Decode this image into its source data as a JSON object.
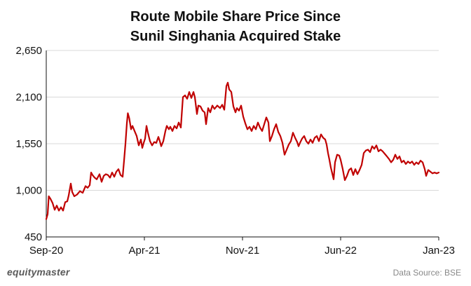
{
  "chart_data": {
    "type": "line",
    "title_lines": [
      "Route Mobile Share Price Since",
      "Sunil Singhania Acquired Stake"
    ],
    "xlabel": "",
    "ylabel": "",
    "ylim": [
      450,
      2650
    ],
    "y_ticks": [
      {
        "value": 450,
        "label": "450"
      },
      {
        "value": 1000,
        "label": "1,000"
      },
      {
        "value": 1550,
        "label": "1,550"
      },
      {
        "value": 2100,
        "label": "2,100"
      },
      {
        "value": 2650,
        "label": "2,650"
      }
    ],
    "x_range": [
      0,
      28
    ],
    "x_ticks": [
      {
        "value": 0,
        "label": "Sep-20"
      },
      {
        "value": 7,
        "label": "Apr-21"
      },
      {
        "value": 14,
        "label": "Nov-21"
      },
      {
        "value": 21,
        "label": "Jun-22"
      },
      {
        "value": 28,
        "label": "Jan-23"
      }
    ],
    "grid": "horizontal",
    "series": [
      {
        "name": "Route Mobile Share Price",
        "color": "#c00000",
        "points": [
          [
            0.0,
            660
          ],
          [
            0.1,
            720
          ],
          [
            0.18,
            930
          ],
          [
            0.3,
            900
          ],
          [
            0.45,
            850
          ],
          [
            0.6,
            770
          ],
          [
            0.75,
            820
          ],
          [
            0.9,
            760
          ],
          [
            1.05,
            800
          ],
          [
            1.2,
            760
          ],
          [
            1.35,
            860
          ],
          [
            1.5,
            870
          ],
          [
            1.6,
            940
          ],
          [
            1.75,
            1080
          ],
          [
            1.85,
            980
          ],
          [
            2.0,
            930
          ],
          [
            2.2,
            950
          ],
          [
            2.4,
            990
          ],
          [
            2.6,
            970
          ],
          [
            2.8,
            1050
          ],
          [
            2.95,
            1030
          ],
          [
            3.1,
            1060
          ],
          [
            3.2,
            1210
          ],
          [
            3.3,
            1180
          ],
          [
            3.45,
            1150
          ],
          [
            3.6,
            1130
          ],
          [
            3.8,
            1190
          ],
          [
            3.95,
            1100
          ],
          [
            4.1,
            1170
          ],
          [
            4.25,
            1190
          ],
          [
            4.4,
            1180
          ],
          [
            4.55,
            1150
          ],
          [
            4.7,
            1210
          ],
          [
            4.85,
            1160
          ],
          [
            5.0,
            1220
          ],
          [
            5.15,
            1250
          ],
          [
            5.3,
            1180
          ],
          [
            5.45,
            1160
          ],
          [
            5.55,
            1350
          ],
          [
            5.65,
            1550
          ],
          [
            5.75,
            1790
          ],
          [
            5.82,
            1910
          ],
          [
            5.92,
            1850
          ],
          [
            6.05,
            1720
          ],
          [
            6.15,
            1760
          ],
          [
            6.3,
            1700
          ],
          [
            6.45,
            1640
          ],
          [
            6.6,
            1530
          ],
          [
            6.75,
            1600
          ],
          [
            6.85,
            1500
          ],
          [
            6.95,
            1560
          ],
          [
            7.05,
            1610
          ],
          [
            7.15,
            1760
          ],
          [
            7.25,
            1680
          ],
          [
            7.4,
            1580
          ],
          [
            7.55,
            1530
          ],
          [
            7.7,
            1570
          ],
          [
            7.85,
            1560
          ],
          [
            8.0,
            1630
          ],
          [
            8.1,
            1580
          ],
          [
            8.2,
            1520
          ],
          [
            8.35,
            1580
          ],
          [
            8.5,
            1700
          ],
          [
            8.6,
            1760
          ],
          [
            8.75,
            1720
          ],
          [
            8.85,
            1750
          ],
          [
            9.0,
            1700
          ],
          [
            9.15,
            1760
          ],
          [
            9.3,
            1730
          ],
          [
            9.45,
            1800
          ],
          [
            9.6,
            1740
          ],
          [
            9.75,
            2100
          ],
          [
            9.9,
            2120
          ],
          [
            10.05,
            2080
          ],
          [
            10.2,
            2160
          ],
          [
            10.35,
            2090
          ],
          [
            10.5,
            2160
          ],
          [
            10.6,
            2100
          ],
          [
            10.75,
            1900
          ],
          [
            10.85,
            2000
          ],
          [
            11.0,
            1990
          ],
          [
            11.15,
            1940
          ],
          [
            11.3,
            1920
          ],
          [
            11.4,
            1780
          ],
          [
            11.55,
            1970
          ],
          [
            11.7,
            1920
          ],
          [
            11.85,
            2000
          ],
          [
            12.0,
            1960
          ],
          [
            12.2,
            2000
          ],
          [
            12.4,
            1970
          ],
          [
            12.55,
            2010
          ],
          [
            12.7,
            1950
          ],
          [
            12.85,
            2230
          ],
          [
            12.95,
            2270
          ],
          [
            13.05,
            2190
          ],
          [
            13.2,
            2160
          ],
          [
            13.35,
            1990
          ],
          [
            13.5,
            1920
          ],
          [
            13.6,
            1970
          ],
          [
            13.75,
            1940
          ],
          [
            13.9,
            2000
          ],
          [
            14.05,
            1870
          ],
          [
            14.2,
            1790
          ],
          [
            14.35,
            1720
          ],
          [
            14.5,
            1750
          ],
          [
            14.65,
            1700
          ],
          [
            14.8,
            1760
          ],
          [
            14.95,
            1720
          ],
          [
            15.1,
            1800
          ],
          [
            15.25,
            1740
          ],
          [
            15.4,
            1700
          ],
          [
            15.55,
            1780
          ],
          [
            15.7,
            1860
          ],
          [
            15.85,
            1800
          ],
          [
            15.95,
            1580
          ],
          [
            16.1,
            1640
          ],
          [
            16.25,
            1720
          ],
          [
            16.4,
            1780
          ],
          [
            16.55,
            1690
          ],
          [
            16.7,
            1640
          ],
          [
            16.85,
            1560
          ],
          [
            17.0,
            1420
          ],
          [
            17.15,
            1480
          ],
          [
            17.3,
            1540
          ],
          [
            17.45,
            1580
          ],
          [
            17.6,
            1680
          ],
          [
            17.75,
            1620
          ],
          [
            17.9,
            1570
          ],
          [
            18.0,
            1520
          ],
          [
            18.1,
            1560
          ],
          [
            18.25,
            1610
          ],
          [
            18.4,
            1640
          ],
          [
            18.55,
            1580
          ],
          [
            18.7,
            1550
          ],
          [
            18.85,
            1600
          ],
          [
            19.0,
            1560
          ],
          [
            19.15,
            1620
          ],
          [
            19.3,
            1640
          ],
          [
            19.45,
            1580
          ],
          [
            19.6,
            1660
          ],
          [
            19.75,
            1620
          ],
          [
            19.9,
            1600
          ],
          [
            20.0,
            1540
          ],
          [
            20.1,
            1440
          ],
          [
            20.2,
            1360
          ],
          [
            20.3,
            1270
          ],
          [
            20.4,
            1200
          ],
          [
            20.5,
            1130
          ],
          [
            20.6,
            1330
          ],
          [
            20.75,
            1420
          ],
          [
            20.9,
            1410
          ],
          [
            21.0,
            1360
          ],
          [
            21.15,
            1250
          ],
          [
            21.3,
            1120
          ],
          [
            21.45,
            1170
          ],
          [
            21.6,
            1240
          ],
          [
            21.75,
            1260
          ],
          [
            21.9,
            1180
          ],
          [
            22.05,
            1250
          ],
          [
            22.2,
            1190
          ],
          [
            22.35,
            1240
          ],
          [
            22.5,
            1300
          ],
          [
            22.65,
            1440
          ],
          [
            22.8,
            1470
          ],
          [
            22.95,
            1480
          ],
          [
            23.1,
            1450
          ],
          [
            23.25,
            1520
          ],
          [
            23.4,
            1490
          ],
          [
            23.55,
            1530
          ],
          [
            23.7,
            1460
          ],
          [
            23.85,
            1480
          ],
          [
            24.0,
            1460
          ],
          [
            24.15,
            1430
          ],
          [
            24.3,
            1400
          ],
          [
            24.45,
            1370
          ],
          [
            24.6,
            1330
          ],
          [
            24.75,
            1360
          ],
          [
            24.9,
            1420
          ],
          [
            25.05,
            1370
          ],
          [
            25.2,
            1400
          ],
          [
            25.35,
            1330
          ],
          [
            25.5,
            1350
          ],
          [
            25.65,
            1310
          ],
          [
            25.8,
            1340
          ],
          [
            25.95,
            1320
          ],
          [
            26.1,
            1340
          ],
          [
            26.25,
            1300
          ],
          [
            26.4,
            1330
          ],
          [
            26.55,
            1310
          ],
          [
            26.7,
            1350
          ],
          [
            26.85,
            1330
          ],
          [
            27.0,
            1250
          ],
          [
            27.1,
            1170
          ],
          [
            27.25,
            1240
          ],
          [
            27.4,
            1220
          ],
          [
            27.55,
            1200
          ],
          [
            27.7,
            1210
          ],
          [
            27.85,
            1200
          ],
          [
            28.0,
            1210
          ]
        ]
      }
    ]
  },
  "footer": {
    "brand": "equitymaster",
    "source": "Data Source: BSE"
  }
}
